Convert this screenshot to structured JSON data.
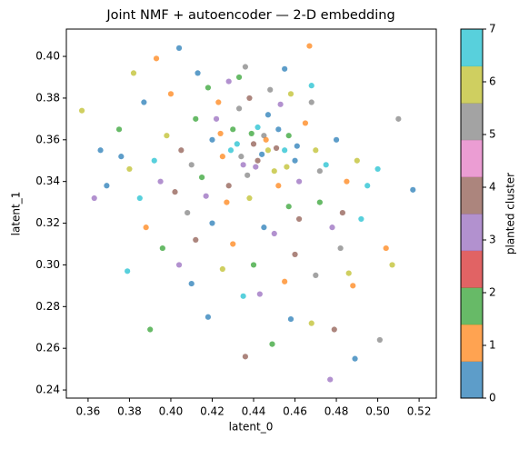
{
  "chart_data": {
    "type": "scatter",
    "title": "Joint NMF + autoencoder — 2-D embedding",
    "x_label": "latent_0",
    "y_label": "latent_1",
    "x": [
      0.357,
      0.517,
      0.404,
      0.467,
      0.379,
      0.39,
      0.477,
      0.489,
      0.51,
      0.507,
      0.363,
      0.366,
      0.369,
      0.375,
      0.382,
      0.393,
      0.41,
      0.418,
      0.436,
      0.479,
      0.468,
      0.458,
      0.455,
      0.436,
      0.5,
      0.504,
      0.501,
      0.488,
      0.449,
      0.443,
      0.42,
      0.425,
      0.43,
      0.435,
      0.44,
      0.445,
      0.45,
      0.455,
      0.46,
      0.465,
      0.415,
      0.422,
      0.428,
      0.433,
      0.438,
      0.442,
      0.447,
      0.452,
      0.457,
      0.462,
      0.405,
      0.41,
      0.398,
      0.392,
      0.387,
      0.4,
      0.412,
      0.395,
      0.402,
      0.408,
      0.47,
      0.475,
      0.48,
      0.485,
      0.472,
      0.478,
      0.483,
      0.468,
      0.49,
      0.495,
      0.42,
      0.43,
      0.44,
      0.45,
      0.46,
      0.47,
      0.425,
      0.435,
      0.445,
      0.455,
      0.418,
      0.428,
      0.438,
      0.448,
      0.458,
      0.468,
      0.413,
      0.423,
      0.433,
      0.453,
      0.442,
      0.437,
      0.447,
      0.432,
      0.452,
      0.427,
      0.457,
      0.417,
      0.462,
      0.472,
      0.38,
      0.385,
      0.376,
      0.388,
      0.396,
      0.404,
      0.412,
      0.482,
      0.486,
      0.492,
      0.444,
      0.446,
      0.439,
      0.441,
      0.451,
      0.434,
      0.456,
      0.429,
      0.461,
      0.424
    ],
    "y": [
      0.374,
      0.336,
      0.404,
      0.405,
      0.297,
      0.269,
      0.245,
      0.255,
      0.37,
      0.3,
      0.332,
      0.355,
      0.338,
      0.365,
      0.392,
      0.399,
      0.291,
      0.275,
      0.256,
      0.269,
      0.272,
      0.274,
      0.394,
      0.395,
      0.346,
      0.308,
      0.264,
      0.29,
      0.262,
      0.286,
      0.36,
      0.352,
      0.365,
      0.348,
      0.358,
      0.362,
      0.345,
      0.355,
      0.35,
      0.368,
      0.342,
      0.37,
      0.338,
      0.375,
      0.332,
      0.366,
      0.372,
      0.338,
      0.362,
      0.34,
      0.355,
      0.348,
      0.362,
      0.35,
      0.378,
      0.382,
      0.37,
      0.34,
      0.335,
      0.325,
      0.355,
      0.348,
      0.36,
      0.34,
      0.33,
      0.318,
      0.325,
      0.378,
      0.35,
      0.338,
      0.32,
      0.31,
      0.3,
      0.315,
      0.305,
      0.295,
      0.298,
      0.285,
      0.318,
      0.292,
      0.385,
      0.388,
      0.38,
      0.384,
      0.382,
      0.386,
      0.392,
      0.378,
      0.39,
      0.377,
      0.35,
      0.343,
      0.355,
      0.358,
      0.365,
      0.33,
      0.328,
      0.333,
      0.322,
      0.345,
      0.346,
      0.332,
      0.352,
      0.318,
      0.308,
      0.3,
      0.312,
      0.308,
      0.296,
      0.322,
      0.353,
      0.36,
      0.363,
      0.347,
      0.356,
      0.352,
      0.347,
      0.355,
      0.357,
      0.363
    ],
    "cluster": [
      6,
      0,
      0,
      1,
      7,
      2,
      3,
      0,
      5,
      6,
      3,
      0,
      0,
      2,
      6,
      1,
      0,
      0,
      4,
      4,
      6,
      0,
      0,
      5,
      7,
      1,
      5,
      1,
      2,
      3,
      0,
      1,
      2,
      3,
      4,
      5,
      6,
      7,
      0,
      1,
      2,
      3,
      4,
      5,
      6,
      7,
      0,
      1,
      2,
      3,
      4,
      5,
      6,
      7,
      0,
      1,
      2,
      3,
      4,
      5,
      6,
      7,
      0,
      1,
      2,
      3,
      4,
      5,
      6,
      7,
      0,
      1,
      2,
      3,
      4,
      5,
      6,
      7,
      0,
      1,
      2,
      3,
      4,
      5,
      6,
      7,
      0,
      1,
      2,
      3,
      4,
      5,
      6,
      7,
      0,
      1,
      2,
      3,
      4,
      5,
      6,
      7,
      0,
      1,
      2,
      3,
      4,
      5,
      6,
      7,
      0,
      1,
      2,
      3,
      4,
      5,
      6,
      7,
      0,
      1
    ],
    "xlim": [
      0.3495,
      0.5283
    ],
    "ylim": [
      0.2361,
      0.4131
    ],
    "xticks": [
      0.36,
      0.38,
      {
        "value": 0.4,
        "label": "0.40"
      },
      0.42,
      0.44,
      0.46,
      0.48,
      {
        "value": 0.5,
        "label": "0.50"
      },
      0.52
    ],
    "yticks": [
      0.24,
      0.26,
      0.28,
      {
        "value": 0.3,
        "label": "0.30"
      },
      0.32,
      0.34,
      0.36,
      0.38,
      {
        "value": 0.4,
        "label": "0.40"
      }
    ],
    "colorbar": {
      "label": "planted cluster",
      "lim": [
        0,
        7
      ],
      "ticks": [
        0,
        1,
        2,
        3,
        4,
        5,
        6,
        7
      ],
      "colormap": [
        "#1f77b4",
        "#ff7f0e",
        "#2ca02c",
        "#d62728",
        "#9467bd",
        "#8c564b",
        "#e377c2",
        "#7f7f7f",
        "#bcbd22",
        "#17becf"
      ]
    }
  }
}
